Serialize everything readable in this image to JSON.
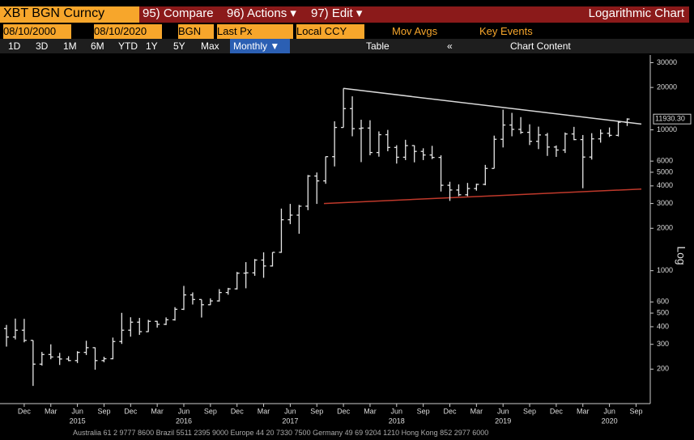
{
  "header": {
    "ticker": "XBT BGN Curncy",
    "menu": [
      "95) Compare",
      "96) Actions ▾",
      "97) Edit ▾"
    ],
    "chart_title": "Logarithmic Chart"
  },
  "controls": {
    "start_date": "08/10/2000",
    "end_date": "08/10/2020",
    "source": "BGN",
    "field": "Last Px",
    "currency": "Local CCY",
    "mov_avgs": "Mov Avgs",
    "key_events": "Key Events",
    "periods": [
      "1D",
      "3D",
      "1M",
      "6M",
      "YTD",
      "1Y",
      "5Y",
      "Max"
    ],
    "frequency": "Monthly ▼",
    "table": "Table",
    "collapse": "«",
    "chart_content": "Chart Content"
  },
  "chart_data": {
    "type": "ohlc",
    "log_scale": true,
    "color": "#e6e6e6",
    "y_axis_label": "Log",
    "categories": [
      null,
      null,
      "Dec",
      null,
      null,
      "Mar",
      null,
      null,
      "Jun",
      null,
      null,
      "Sep",
      null,
      null,
      "Dec",
      null,
      null,
      "Mar",
      null,
      null,
      "Jun",
      null,
      null,
      "Sep",
      null,
      null,
      "Dec",
      null,
      null,
      "Mar",
      null,
      null,
      "Jun",
      null,
      null,
      "Sep",
      null,
      null,
      "Dec",
      null,
      null,
      "Mar",
      null,
      null,
      "Jun",
      null,
      null,
      "Sep",
      null,
      null,
      "Dec",
      null,
      null,
      "Mar",
      null,
      null,
      "Jun",
      null,
      null,
      "Sep",
      null,
      null,
      "Dec",
      null,
      null,
      "Mar",
      null,
      null,
      "Jun",
      null,
      null,
      "Sep"
    ],
    "years": [
      "2015",
      "2016",
      "2017",
      "2018",
      "2019",
      "2020"
    ],
    "open": [
      388,
      338,
      378,
      320,
      217,
      254,
      244,
      236,
      230,
      263,
      284,
      230,
      237,
      314,
      378,
      431,
      369,
      437,
      416,
      448,
      532,
      673,
      624,
      573,
      610,
      700,
      743,
      960,
      965,
      1190,
      1080,
      1350,
      2300,
      2480,
      2870,
      4700,
      4340,
      6450,
      10400,
      14150,
      10200,
      10300,
      6900,
      9240,
      7500,
      6390,
      7730,
      7030,
      6630,
      6370,
      4040,
      3740,
      3460,
      3830,
      4100,
      5320,
      8570,
      10820,
      10080,
      9600,
      8290,
      9200,
      7550,
      7190,
      9350,
      8530,
      6410,
      8630,
      9450,
      9140,
      11320,
      null
    ],
    "high": [
      412,
      457,
      455,
      320,
      265,
      300,
      261,
      247,
      268,
      318,
      285,
      245,
      335,
      502,
      467,
      462,
      448,
      440,
      466,
      551,
      780,
      701,
      623,
      636,
      740,
      755,
      980,
      1150,
      1210,
      1350,
      1350,
      2760,
      2980,
      2930,
      4780,
      4980,
      6470,
      11500,
      19700,
      17300,
      11800,
      11700,
      9750,
      9990,
      7780,
      8500,
      7760,
      7400,
      7700,
      6600,
      4280,
      4100,
      4200,
      4150,
      5640,
      9100,
      13900,
      13200,
      12320,
      10950,
      10540,
      9510,
      7750,
      9580,
      10500,
      9190,
      9470,
      10070,
      10400,
      11480,
      12080,
      null
    ],
    "low": [
      289,
      325,
      310,
      152,
      212,
      235,
      214,
      228,
      221,
      252,
      198,
      224,
      235,
      302,
      340,
      350,
      367,
      394,
      411,
      442,
      526,
      575,
      465,
      570,
      604,
      675,
      735,
      750,
      920,
      890,
      1070,
      1340,
      2140,
      1830,
      2690,
      2980,
      4140,
      5500,
      10400,
      9000,
      5900,
      6600,
      6450,
      7050,
      5760,
      6100,
      5880,
      6100,
      6200,
      3650,
      3130,
      3380,
      3380,
      3700,
      4040,
      5320,
      7500,
      9000,
      9360,
      7800,
      7300,
      6530,
      6430,
      6850,
      8450,
      3850,
      6150,
      8110,
      8900,
      8980,
      10650,
      null
    ],
    "close": [
      338,
      378,
      320,
      217,
      254,
      244,
      236,
      230,
      263,
      284,
      230,
      237,
      314,
      378,
      431,
      369,
      437,
      416,
      448,
      532,
      673,
      624,
      573,
      610,
      700,
      743,
      960,
      965,
      1190,
      1080,
      1350,
      2300,
      2480,
      2870,
      4700,
      4340,
      6450,
      10400,
      14150,
      10200,
      10300,
      6900,
      9240,
      7500,
      6390,
      7730,
      7030,
      6630,
      6370,
      4040,
      3740,
      3460,
      3830,
      4100,
      5320,
      8570,
      10820,
      10080,
      9600,
      8290,
      9200,
      7550,
      7190,
      9350,
      8530,
      6410,
      8630,
      9450,
      9140,
      11320,
      11930.3,
      null
    ],
    "last_price_label": "11930.30",
    "ylim": [
      120,
      34000
    ],
    "yticks": [
      200,
      300,
      400,
      500,
      600,
      1000,
      2000,
      3000,
      4000,
      5000,
      6000,
      10000,
      20000,
      30000
    ],
    "trendlines": [
      {
        "color": "#d9d9d9",
        "x": [
          38,
          71.6
        ],
        "values": [
          19700,
          11000
        ]
      },
      {
        "color": "#c0392b",
        "x": [
          35.8,
          71.6
        ],
        "values": [
          3000,
          3800
        ]
      }
    ]
  },
  "footer": "Australia 61 2 9777 8600 Brazil 5511 2395 9000 Europe 44 20 7330 7500 Germany 49 69 9204 1210 Hong Kong 852 2977 6000"
}
